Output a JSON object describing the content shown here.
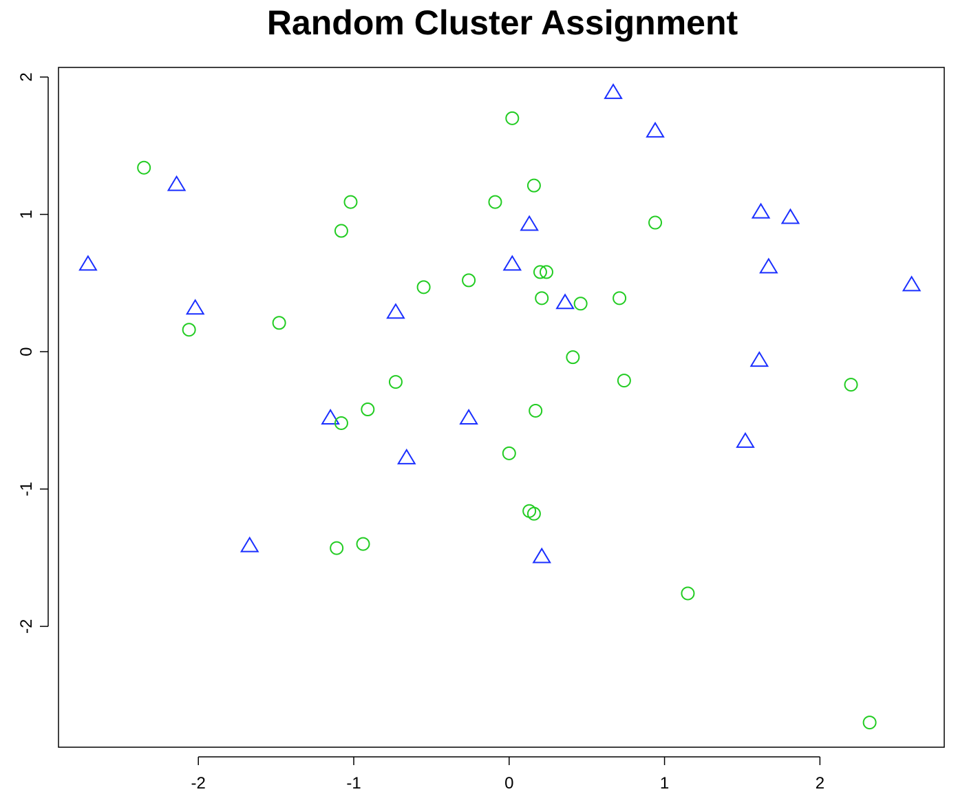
{
  "chart_data": {
    "type": "scatter",
    "title": "Random Cluster Assignment",
    "xlabel": "",
    "ylabel": "",
    "xlim": [
      -2.9,
      2.8
    ],
    "ylim": [
      -2.88,
      2.07
    ],
    "x_ticks": [
      -2,
      -1,
      0,
      1,
      2
    ],
    "y_ticks": [
      -2,
      -1,
      0,
      1,
      2
    ],
    "x_tick_labels": [
      "-2",
      "-1",
      "0",
      "1",
      "2"
    ],
    "y_tick_labels": [
      "-2",
      "-1",
      "0",
      "1",
      "2"
    ],
    "grid": false,
    "legend": "none",
    "series": [
      {
        "marker": "triangle",
        "color": "#1a2fff",
        "points": [
          [
            0.67,
            1.89
          ],
          [
            0.94,
            1.61
          ],
          [
            -2.14,
            1.22
          ],
          [
            1.62,
            1.02
          ],
          [
            1.81,
            0.98
          ],
          [
            0.13,
            0.93
          ],
          [
            -2.71,
            0.64
          ],
          [
            0.02,
            0.64
          ],
          [
            1.67,
            0.62
          ],
          [
            2.59,
            0.49
          ],
          [
            0.36,
            0.36
          ],
          [
            -2.02,
            0.32
          ],
          [
            -0.73,
            0.29
          ],
          [
            1.61,
            -0.06
          ],
          [
            -1.15,
            -0.48
          ],
          [
            -0.26,
            -0.48
          ],
          [
            1.52,
            -0.65
          ],
          [
            -0.66,
            -0.77
          ],
          [
            -1.67,
            -1.41
          ],
          [
            0.21,
            -1.49
          ]
        ]
      },
      {
        "marker": "circle",
        "color": "#22cc22",
        "points": [
          [
            0.02,
            1.7
          ],
          [
            -2.35,
            1.34
          ],
          [
            0.16,
            1.21
          ],
          [
            -1.02,
            1.09
          ],
          [
            -0.09,
            1.09
          ],
          [
            0.94,
            0.94
          ],
          [
            -1.08,
            0.88
          ],
          [
            0.2,
            0.58
          ],
          [
            0.24,
            0.58
          ],
          [
            -0.26,
            0.52
          ],
          [
            -0.55,
            0.47
          ],
          [
            0.21,
            0.39
          ],
          [
            0.71,
            0.39
          ],
          [
            0.46,
            0.35
          ],
          [
            -1.48,
            0.21
          ],
          [
            -2.06,
            0.16
          ],
          [
            0.41,
            -0.04
          ],
          [
            0.74,
            -0.21
          ],
          [
            -0.73,
            -0.22
          ],
          [
            2.2,
            -0.24
          ],
          [
            -0.91,
            -0.42
          ],
          [
            0.17,
            -0.43
          ],
          [
            -1.08,
            -0.52
          ],
          [
            0.0,
            -0.74
          ],
          [
            0.13,
            -1.16
          ],
          [
            0.16,
            -1.18
          ],
          [
            -0.94,
            -1.4
          ],
          [
            -1.11,
            -1.43
          ],
          [
            1.15,
            -1.76
          ],
          [
            2.32,
            -2.7
          ]
        ]
      }
    ]
  }
}
